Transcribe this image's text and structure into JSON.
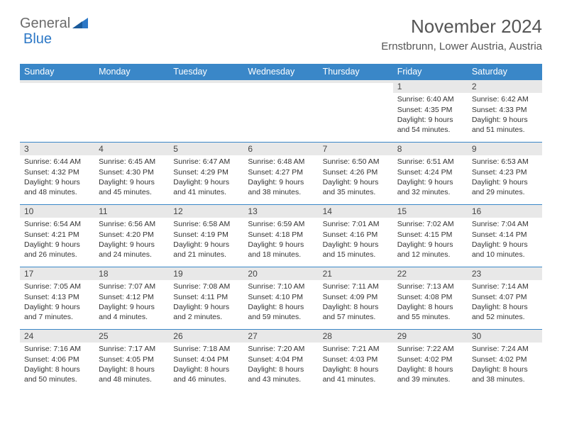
{
  "logo": {
    "text1": "General",
    "text2": "Blue"
  },
  "month_title": "November 2024",
  "location": "Ernstbrunn, Lower Austria, Austria",
  "colors": {
    "header_bg": "#3a87c8",
    "header_text": "#ffffff",
    "daynum_bg": "#e8e8e8",
    "cell_border": "#3a87c8",
    "logo_gray": "#6b6b6b",
    "logo_blue": "#2d78c6"
  },
  "weekdays": [
    "Sunday",
    "Monday",
    "Tuesday",
    "Wednesday",
    "Thursday",
    "Friday",
    "Saturday"
  ],
  "weeks": [
    [
      {
        "n": "",
        "t": ""
      },
      {
        "n": "",
        "t": ""
      },
      {
        "n": "",
        "t": ""
      },
      {
        "n": "",
        "t": ""
      },
      {
        "n": "",
        "t": ""
      },
      {
        "n": "1",
        "t": "Sunrise: 6:40 AM\nSunset: 4:35 PM\nDaylight: 9 hours and 54 minutes."
      },
      {
        "n": "2",
        "t": "Sunrise: 6:42 AM\nSunset: 4:33 PM\nDaylight: 9 hours and 51 minutes."
      }
    ],
    [
      {
        "n": "3",
        "t": "Sunrise: 6:44 AM\nSunset: 4:32 PM\nDaylight: 9 hours and 48 minutes."
      },
      {
        "n": "4",
        "t": "Sunrise: 6:45 AM\nSunset: 4:30 PM\nDaylight: 9 hours and 45 minutes."
      },
      {
        "n": "5",
        "t": "Sunrise: 6:47 AM\nSunset: 4:29 PM\nDaylight: 9 hours and 41 minutes."
      },
      {
        "n": "6",
        "t": "Sunrise: 6:48 AM\nSunset: 4:27 PM\nDaylight: 9 hours and 38 minutes."
      },
      {
        "n": "7",
        "t": "Sunrise: 6:50 AM\nSunset: 4:26 PM\nDaylight: 9 hours and 35 minutes."
      },
      {
        "n": "8",
        "t": "Sunrise: 6:51 AM\nSunset: 4:24 PM\nDaylight: 9 hours and 32 minutes."
      },
      {
        "n": "9",
        "t": "Sunrise: 6:53 AM\nSunset: 4:23 PM\nDaylight: 9 hours and 29 minutes."
      }
    ],
    [
      {
        "n": "10",
        "t": "Sunrise: 6:54 AM\nSunset: 4:21 PM\nDaylight: 9 hours and 26 minutes."
      },
      {
        "n": "11",
        "t": "Sunrise: 6:56 AM\nSunset: 4:20 PM\nDaylight: 9 hours and 24 minutes."
      },
      {
        "n": "12",
        "t": "Sunrise: 6:58 AM\nSunset: 4:19 PM\nDaylight: 9 hours and 21 minutes."
      },
      {
        "n": "13",
        "t": "Sunrise: 6:59 AM\nSunset: 4:18 PM\nDaylight: 9 hours and 18 minutes."
      },
      {
        "n": "14",
        "t": "Sunrise: 7:01 AM\nSunset: 4:16 PM\nDaylight: 9 hours and 15 minutes."
      },
      {
        "n": "15",
        "t": "Sunrise: 7:02 AM\nSunset: 4:15 PM\nDaylight: 9 hours and 12 minutes."
      },
      {
        "n": "16",
        "t": "Sunrise: 7:04 AM\nSunset: 4:14 PM\nDaylight: 9 hours and 10 minutes."
      }
    ],
    [
      {
        "n": "17",
        "t": "Sunrise: 7:05 AM\nSunset: 4:13 PM\nDaylight: 9 hours and 7 minutes."
      },
      {
        "n": "18",
        "t": "Sunrise: 7:07 AM\nSunset: 4:12 PM\nDaylight: 9 hours and 4 minutes."
      },
      {
        "n": "19",
        "t": "Sunrise: 7:08 AM\nSunset: 4:11 PM\nDaylight: 9 hours and 2 minutes."
      },
      {
        "n": "20",
        "t": "Sunrise: 7:10 AM\nSunset: 4:10 PM\nDaylight: 8 hours and 59 minutes."
      },
      {
        "n": "21",
        "t": "Sunrise: 7:11 AM\nSunset: 4:09 PM\nDaylight: 8 hours and 57 minutes."
      },
      {
        "n": "22",
        "t": "Sunrise: 7:13 AM\nSunset: 4:08 PM\nDaylight: 8 hours and 55 minutes."
      },
      {
        "n": "23",
        "t": "Sunrise: 7:14 AM\nSunset: 4:07 PM\nDaylight: 8 hours and 52 minutes."
      }
    ],
    [
      {
        "n": "24",
        "t": "Sunrise: 7:16 AM\nSunset: 4:06 PM\nDaylight: 8 hours and 50 minutes."
      },
      {
        "n": "25",
        "t": "Sunrise: 7:17 AM\nSunset: 4:05 PM\nDaylight: 8 hours and 48 minutes."
      },
      {
        "n": "26",
        "t": "Sunrise: 7:18 AM\nSunset: 4:04 PM\nDaylight: 8 hours and 46 minutes."
      },
      {
        "n": "27",
        "t": "Sunrise: 7:20 AM\nSunset: 4:04 PM\nDaylight: 8 hours and 43 minutes."
      },
      {
        "n": "28",
        "t": "Sunrise: 7:21 AM\nSunset: 4:03 PM\nDaylight: 8 hours and 41 minutes."
      },
      {
        "n": "29",
        "t": "Sunrise: 7:22 AM\nSunset: 4:02 PM\nDaylight: 8 hours and 39 minutes."
      },
      {
        "n": "30",
        "t": "Sunrise: 7:24 AM\nSunset: 4:02 PM\nDaylight: 8 hours and 38 minutes."
      }
    ]
  ]
}
